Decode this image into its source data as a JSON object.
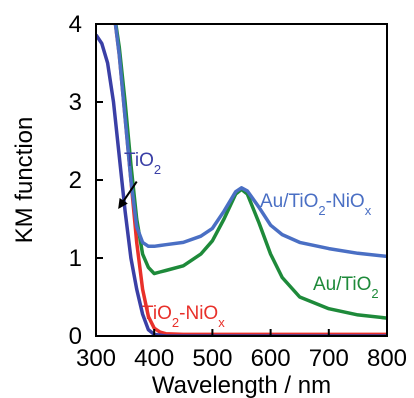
{
  "chart_data": {
    "type": "line",
    "title": "",
    "xlabel": "Wavelength / nm",
    "ylabel": "KM function",
    "xlim": [
      300,
      800
    ],
    "ylim": [
      0,
      4
    ],
    "xticks": [
      300,
      400,
      500,
      600,
      700,
      800
    ],
    "yticks": [
      0,
      1,
      2,
      3,
      4
    ],
    "grid": false,
    "legend": "inline labels",
    "series": [
      {
        "name": "TiO2",
        "label_parts": [
          "TiO",
          "2",
          ""
        ],
        "color": "#3a3fa6",
        "x": [
          300,
          310,
          320,
          330,
          340,
          350,
          360,
          370,
          380,
          390,
          400,
          420,
          500,
          800
        ],
        "y": [
          3.86,
          3.75,
          3.5,
          3.0,
          2.3,
          1.6,
          1.0,
          0.6,
          0.28,
          0.08,
          0.02,
          0.0,
          0.0,
          0.0
        ]
      },
      {
        "name": "TiO2-NiOx",
        "label_parts": [
          "TiO",
          "2",
          "-NiO",
          "x"
        ],
        "color": "#e8302a",
        "x": [
          300,
          330,
          340,
          350,
          360,
          370,
          380,
          390,
          400,
          410,
          420,
          450,
          500,
          600,
          800
        ],
        "y": [
          4.6,
          4.2,
          3.6,
          2.8,
          2.0,
          1.2,
          0.6,
          0.25,
          0.1,
          0.05,
          0.03,
          0.02,
          0.02,
          0.02,
          0.02
        ]
      },
      {
        "name": "Au/TiO2",
        "label_parts": [
          "Au/TiO",
          "2"
        ],
        "color": "#1e8a3a",
        "x": [
          300,
          330,
          340,
          350,
          360,
          370,
          380,
          390,
          400,
          410,
          420,
          450,
          480,
          500,
          520,
          540,
          550,
          560,
          580,
          600,
          620,
          650,
          700,
          750,
          800
        ],
        "y": [
          4.6,
          4.2,
          3.7,
          3.0,
          2.2,
          1.5,
          1.05,
          0.88,
          0.8,
          0.82,
          0.84,
          0.9,
          1.05,
          1.22,
          1.5,
          1.82,
          1.88,
          1.82,
          1.45,
          1.05,
          0.75,
          0.5,
          0.35,
          0.27,
          0.23
        ]
      },
      {
        "name": "Au/TiO2-NiOx",
        "label_parts": [
          "Au/TiO",
          "2",
          "-NiO",
          "x"
        ],
        "color": "#4a6fc4",
        "x": [
          300,
          330,
          340,
          350,
          360,
          370,
          380,
          390,
          400,
          410,
          420,
          450,
          480,
          500,
          520,
          540,
          550,
          560,
          580,
          600,
          620,
          650,
          700,
          750,
          800
        ],
        "y": [
          4.6,
          4.2,
          3.6,
          2.8,
          2.0,
          1.4,
          1.2,
          1.15,
          1.15,
          1.16,
          1.17,
          1.2,
          1.28,
          1.38,
          1.6,
          1.85,
          1.9,
          1.86,
          1.65,
          1.42,
          1.3,
          1.2,
          1.12,
          1.06,
          1.02
        ]
      }
    ],
    "annotations": [
      {
        "series": "TiO2",
        "type": "arrow",
        "from": [
          370,
          1.98
        ],
        "to": [
          340,
          1.65
        ]
      }
    ]
  }
}
